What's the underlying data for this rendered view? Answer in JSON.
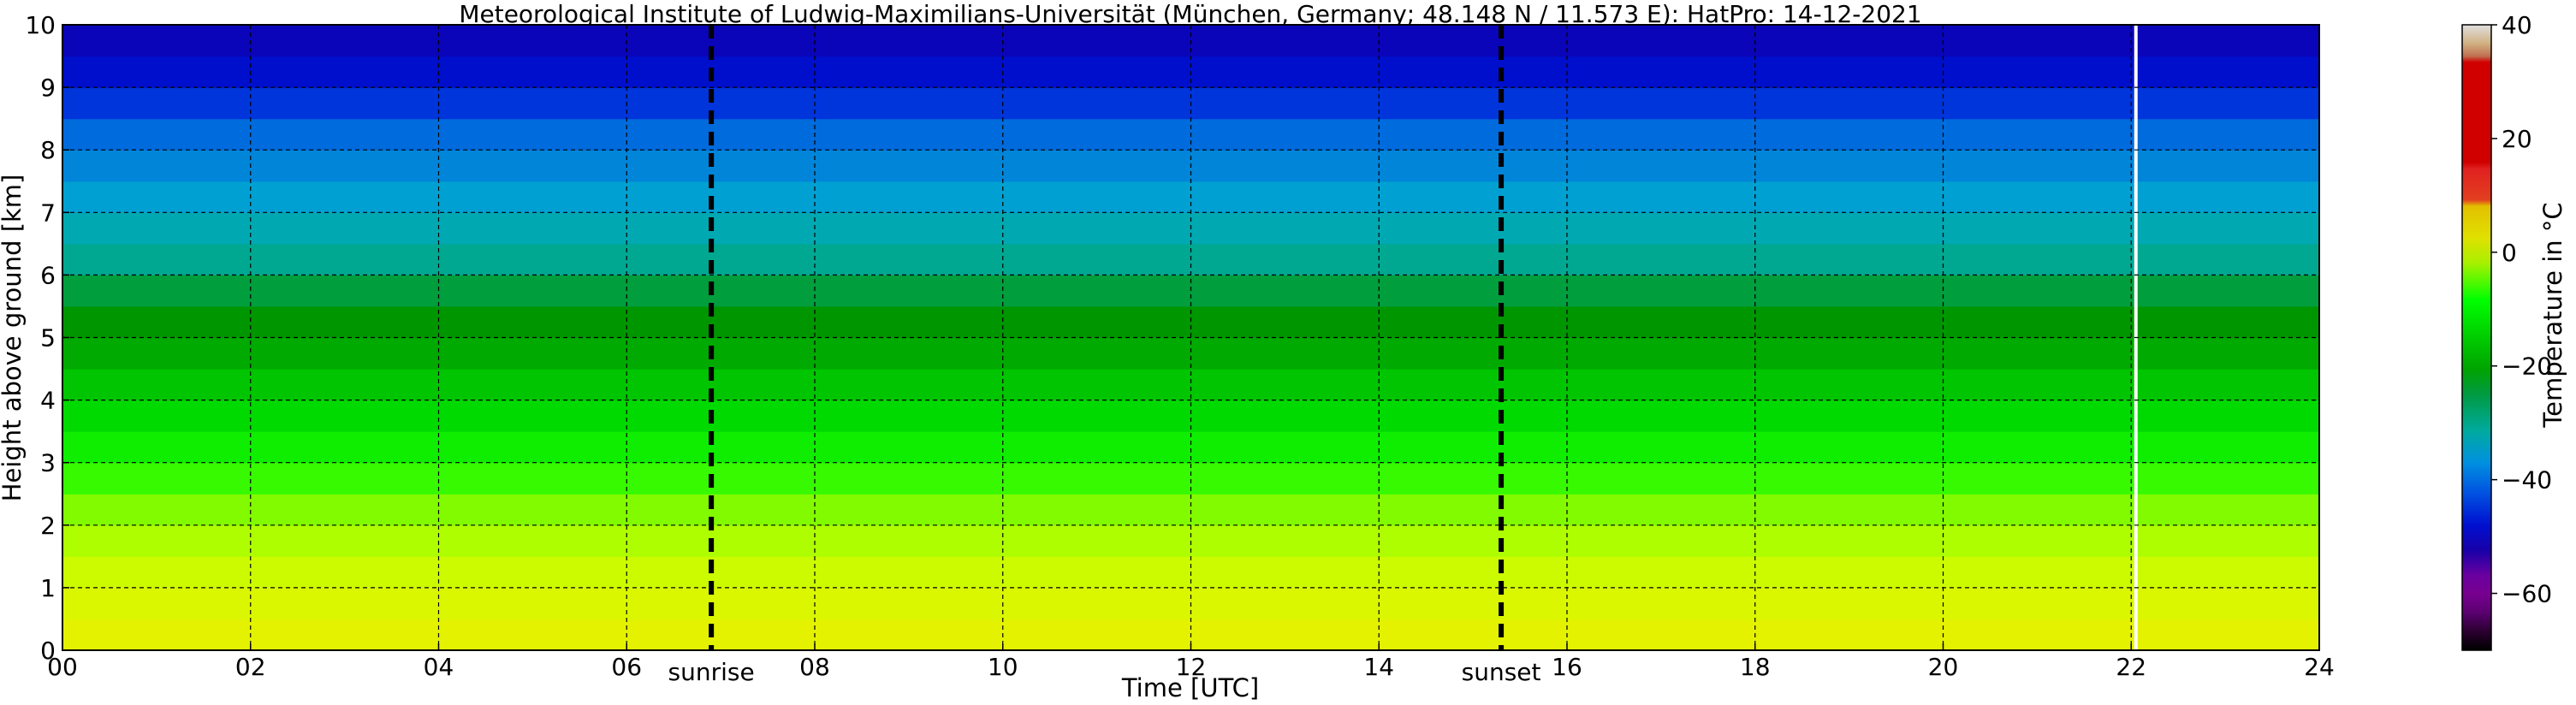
{
  "chart_data": {
    "type": "heatmap",
    "title": "Meteorological Institute of Ludwig-Maximilians-Universität (München, Germany; 48.148 N / 11.573 E):    HatPro: 14-12-2021",
    "xlabel": "Time [UTC]",
    "ylabel": "Height above ground [km]",
    "xlim": [
      0,
      24
    ],
    "ylim": [
      0,
      10
    ],
    "x_ticks": [
      "00",
      "02",
      "04",
      "06",
      "08",
      "10",
      "12",
      "14",
      "16",
      "18",
      "20",
      "22",
      "24"
    ],
    "y_ticks": [
      "0",
      "1",
      "2",
      "3",
      "4",
      "5",
      "6",
      "7",
      "8",
      "9",
      "10"
    ],
    "grid": true,
    "events": [
      {
        "label": "sunrise",
        "time": 6.9
      },
      {
        "label": "sunset",
        "time": 15.3
      }
    ],
    "data_gaps": [
      22.05
    ],
    "colorbar": {
      "label": "Temperature in °C",
      "range": [
        -70,
        40
      ],
      "ticks": [
        "40",
        "20",
        "0",
        "−20",
        "−40",
        "−60"
      ],
      "tick_values": [
        40,
        20,
        0,
        -20,
        -40,
        -60
      ]
    },
    "temperature_profile": {
      "heights_km": [
        0,
        0.5,
        1,
        1.5,
        2,
        2.5,
        3,
        3.5,
        4,
        4.5,
        5,
        5.5,
        6,
        6.5,
        7,
        7.5,
        8,
        8.5,
        9,
        9.5,
        10
      ],
      "temps_c": [
        6,
        4,
        2,
        -1,
        -4,
        -7,
        -10,
        -13,
        -16,
        -19,
        -21,
        -23,
        -27,
        -30,
        -34,
        -38,
        -41,
        -45,
        -51,
        -54,
        -56
      ]
    }
  }
}
